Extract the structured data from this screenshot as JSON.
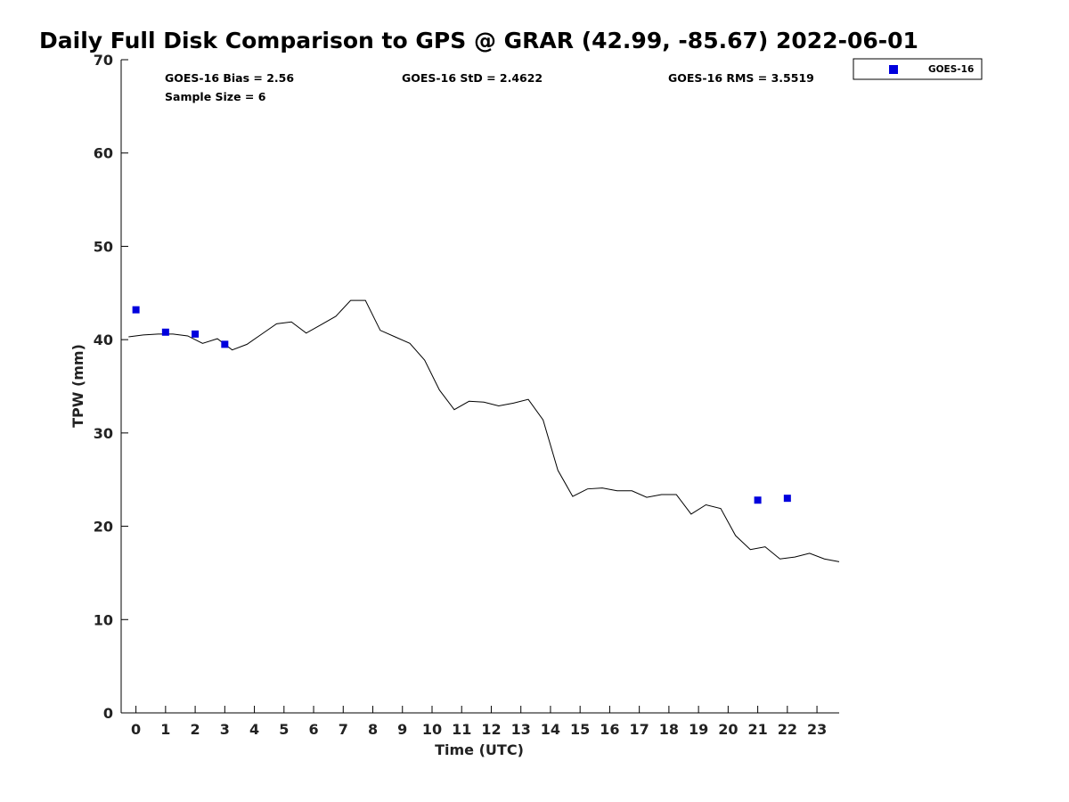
{
  "chart_data": {
    "type": "scatter",
    "title": "Daily Full Disk Comparison to GPS @ GRAR (42.99, -85.67) 2022-06-01",
    "xlabel": "Time (UTC)",
    "ylabel": "TPW (mm)",
    "xlim": [
      -0.5,
      23.75
    ],
    "ylim": [
      0,
      70
    ],
    "x_ticks": [
      "0",
      "1",
      "2",
      "3",
      "4",
      "5",
      "6",
      "7",
      "8",
      "9",
      "10",
      "11",
      "12",
      "13",
      "14",
      "15",
      "16",
      "17",
      "18",
      "19",
      "20",
      "21",
      "22",
      "23"
    ],
    "y_ticks": [
      "0",
      "10",
      "20",
      "30",
      "40",
      "50",
      "60",
      "70"
    ],
    "grid": false,
    "legend_position": "top-right, outside plot",
    "stats": {
      "bias": "GOES-16 Bias = 2.56",
      "std": "GOES-16 StD = 2.4622",
      "rms": "GOES-16 RMS = 3.5519",
      "sample": "Sample Size = 6"
    },
    "series": [
      {
        "name": "GOES-16",
        "style": "markers",
        "color": "#0000dd",
        "marker": "square",
        "x": [
          0,
          1,
          2,
          3,
          21,
          22
        ],
        "y": [
          43.2,
          40.8,
          40.6,
          39.5,
          22.8,
          23.0
        ]
      },
      {
        "style": "line",
        "color": "#000000",
        "x": [
          -0.25,
          0.25,
          0.75,
          1.25,
          1.75,
          2.25,
          2.75,
          3.25,
          3.75,
          4.25,
          4.75,
          5.25,
          5.75,
          6.25,
          6.75,
          7.25,
          7.75,
          8.25,
          8.75,
          9.25,
          9.75,
          10.25,
          10.75,
          11.25,
          11.75,
          12.25,
          12.75,
          13.25,
          13.75,
          14.25,
          14.75,
          15.25,
          15.75,
          16.25,
          16.75,
          17.25,
          17.75,
          18.25,
          18.75,
          19.25,
          19.75,
          20.25,
          20.75,
          21.25,
          21.75,
          22.25,
          22.75,
          23.25,
          23.75
        ],
        "y": [
          40.3,
          40.5,
          40.6,
          40.6,
          40.4,
          39.6,
          40.1,
          38.9,
          39.5,
          40.6,
          41.7,
          41.9,
          40.7,
          41.6,
          42.5,
          44.2,
          44.2,
          41.0,
          40.3,
          39.6,
          37.8,
          34.6,
          32.5,
          33.4,
          33.3,
          32.9,
          33.2,
          33.6,
          31.4,
          26.0,
          23.2,
          24.0,
          24.1,
          23.8,
          23.8,
          23.1,
          23.4,
          23.4,
          21.3,
          22.3,
          21.9,
          19.0,
          17.5,
          17.8,
          16.5,
          16.7,
          17.1,
          16.5,
          16.2
        ]
      }
    ]
  }
}
